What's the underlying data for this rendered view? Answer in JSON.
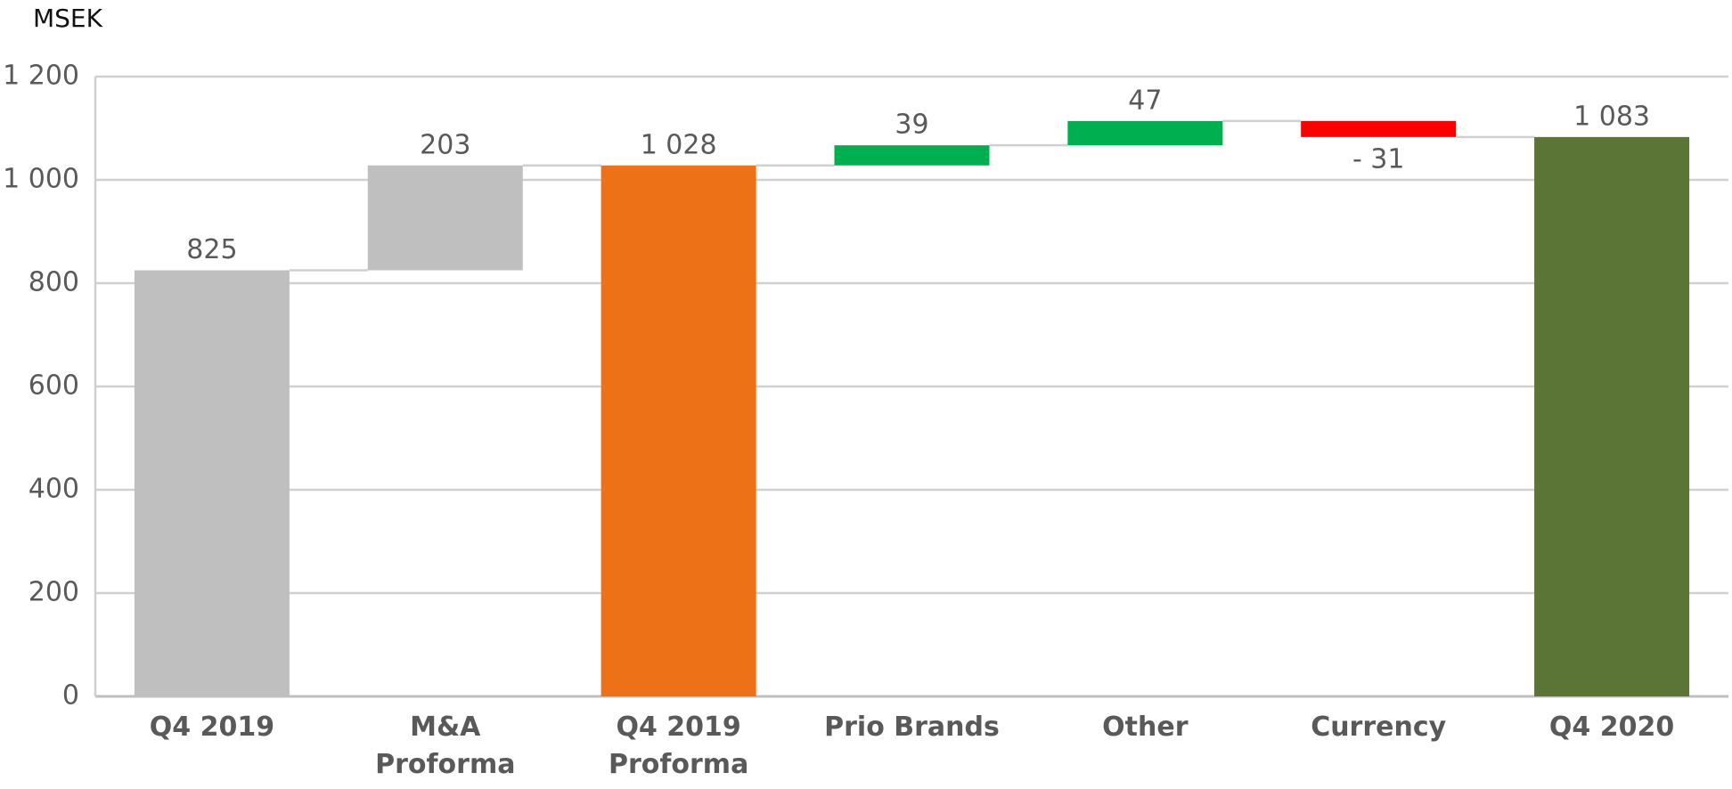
{
  "chart_data": {
    "type": "waterfall",
    "y_label": "MSEK",
    "categories": [
      "Q4 2019",
      "M&A Proforma",
      "Q4 2019 Proforma",
      "Prio Brands",
      "Other",
      "Currency",
      "Q4 2020"
    ],
    "values": [
      825,
      203,
      1028,
      39,
      47,
      -31,
      1083
    ],
    "value_labels": [
      "825",
      "203",
      "1 028",
      "39",
      "47",
      "- 31",
      "1 083"
    ],
    "measures": [
      "total",
      "relative",
      "total",
      "relative",
      "relative",
      "relative",
      "total"
    ],
    "colors": [
      "#bfbfbf",
      "#bfbfbf",
      "#ed7117",
      "#00b050",
      "#00b050",
      "#ff0000",
      "#5b7537"
    ],
    "ylim": [
      0,
      1200
    ],
    "yticks": [
      0,
      200,
      400,
      600,
      800,
      {
        "value": 1000,
        "label": "1 000"
      },
      {
        "value": 1200,
        "label": "1 200"
      }
    ],
    "grid": true
  }
}
